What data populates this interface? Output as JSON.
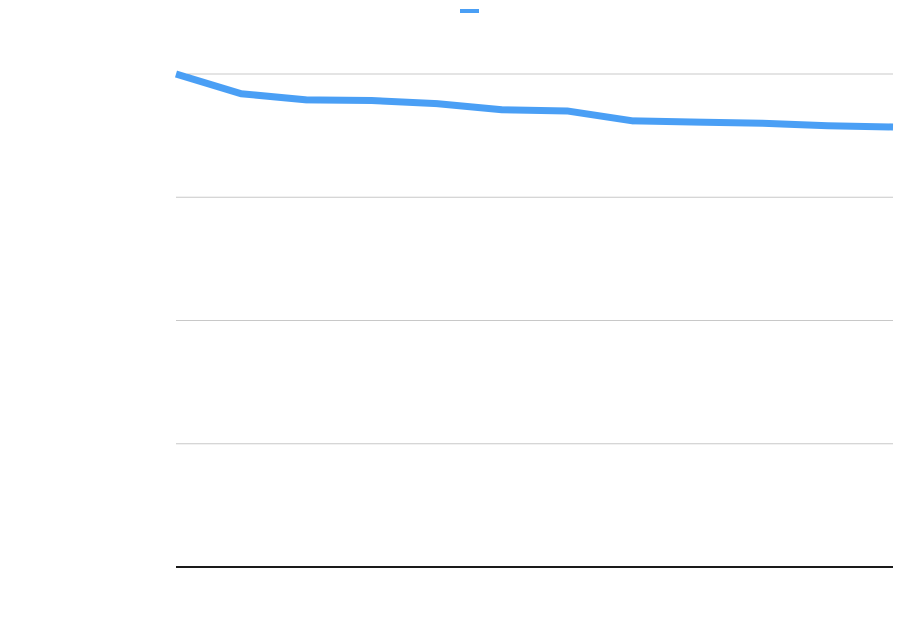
{
  "chart_data": {
    "type": "line",
    "title": "",
    "xlabel": "",
    "ylabel": "",
    "x": [
      1,
      2,
      3,
      4,
      5,
      6,
      7,
      8,
      9,
      10,
      11,
      12
    ],
    "ylim": [
      0,
      4
    ],
    "yticks": [
      0,
      1,
      2,
      3,
      4
    ],
    "grid": true,
    "legend": {
      "placement": "top-center"
    },
    "series": [
      {
        "color": "#4a9ff5",
        "values": [
          4.0,
          3.84,
          3.79,
          3.785,
          3.76,
          3.71,
          3.7,
          3.62,
          3.61,
          3.6,
          3.58,
          3.57
        ]
      }
    ]
  }
}
